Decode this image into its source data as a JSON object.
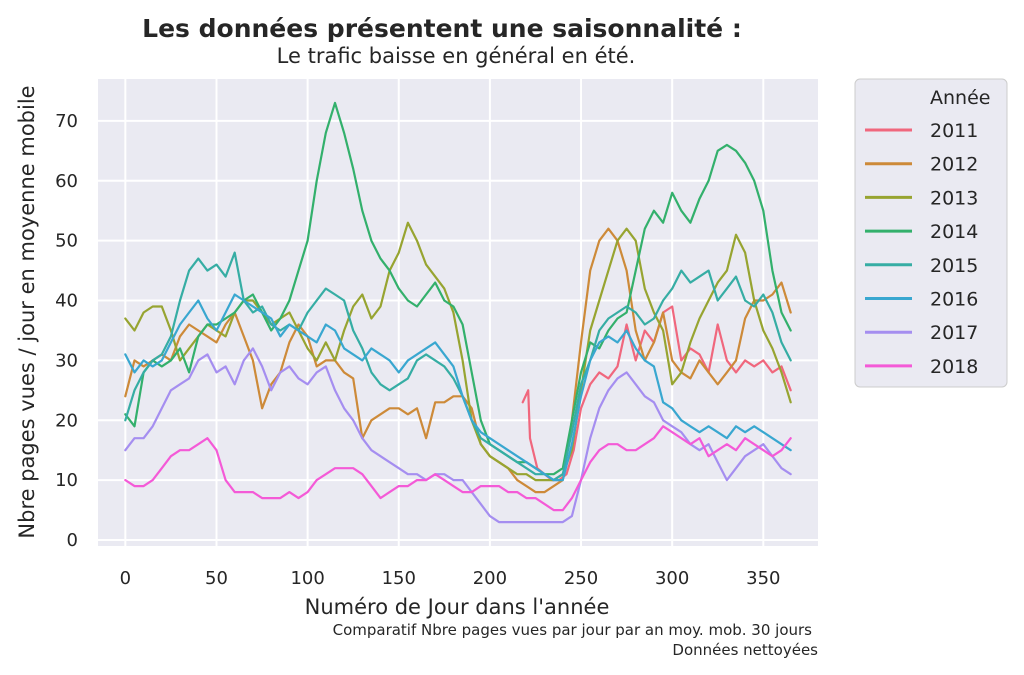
{
  "chart_data": {
    "type": "line",
    "title": "Les données présentent une saisonnalité :",
    "subtitle": "Le trafic baisse en général en été.",
    "xlabel": "Numéro de Jour dans l'année",
    "ylabel": "Nbre pages vues / jour en moyenne mobile",
    "notes": [
      "Comparatif Nbre pages vues par jour  par an moy. mob. 30 jours",
      "Données nettoyées"
    ],
    "xlim": [
      -15,
      380
    ],
    "ylim": [
      -1,
      77
    ],
    "xticks": [
      0,
      50,
      100,
      150,
      200,
      250,
      300,
      350
    ],
    "yticks": [
      0,
      10,
      20,
      30,
      40,
      50,
      60,
      70
    ],
    "grid": true,
    "legend": {
      "title": "Année",
      "placement": "outside-right"
    },
    "series": [
      {
        "name": "2011",
        "color": "#f0677d",
        "x": [
          218,
          221,
          222,
          226,
          230,
          234,
          238,
          242,
          246,
          250,
          255,
          260,
          265,
          270,
          275,
          280,
          285,
          290,
          295,
          300,
          305,
          310,
          315,
          320,
          325,
          330,
          335,
          340,
          345,
          350,
          355,
          360,
          365
        ],
        "values": [
          23,
          25,
          17,
          12,
          11,
          10,
          10,
          11,
          15,
          22,
          26,
          28,
          27,
          29,
          36,
          30,
          35,
          33,
          38,
          39,
          30,
          32,
          31,
          28,
          36,
          30,
          28,
          30,
          29,
          30,
          28,
          29,
          25
        ]
      },
      {
        "name": "2012",
        "color": "#cd8a39",
        "x": [
          0,
          5,
          10,
          15,
          20,
          25,
          30,
          35,
          40,
          45,
          50,
          55,
          60,
          65,
          70,
          75,
          80,
          85,
          90,
          95,
          100,
          105,
          110,
          115,
          120,
          125,
          130,
          135,
          140,
          145,
          150,
          155,
          160,
          165,
          170,
          175,
          180,
          185,
          190,
          195,
          200,
          205,
          210,
          215,
          220,
          225,
          230,
          235,
          240,
          245,
          250,
          255,
          260,
          265,
          270,
          275,
          280,
          285,
          290,
          295,
          300,
          305,
          310,
          315,
          320,
          325,
          330,
          335,
          340,
          345,
          350,
          355,
          360,
          365
        ],
        "values": [
          24,
          30,
          29,
          30,
          31,
          30,
          34,
          36,
          35,
          34,
          33,
          36,
          38,
          34,
          30,
          22,
          26,
          28,
          33,
          36,
          34,
          29,
          30,
          30,
          28,
          27,
          17,
          20,
          21,
          22,
          22,
          21,
          22,
          17,
          23,
          23,
          24,
          24,
          22,
          16,
          14,
          13,
          12,
          10,
          9,
          8,
          8,
          9,
          10,
          20,
          33,
          45,
          50,
          52,
          50,
          45,
          35,
          30,
          33,
          38,
          30,
          28,
          27,
          30,
          28,
          26,
          28,
          30,
          37,
          40,
          40,
          41,
          43,
          38
        ]
      },
      {
        "name": "2013",
        "color": "#97a431",
        "x": [
          0,
          5,
          10,
          15,
          20,
          25,
          30,
          35,
          40,
          45,
          50,
          55,
          60,
          65,
          70,
          75,
          80,
          85,
          90,
          95,
          100,
          105,
          110,
          115,
          120,
          125,
          130,
          135,
          140,
          145,
          150,
          155,
          160,
          165,
          170,
          175,
          180,
          185,
          190,
          195,
          200,
          205,
          210,
          215,
          220,
          225,
          230,
          235,
          240,
          245,
          250,
          255,
          260,
          265,
          270,
          275,
          280,
          285,
          290,
          295,
          300,
          305,
          310,
          315,
          320,
          325,
          330,
          335,
          340,
          345,
          350,
          355,
          360,
          365
        ],
        "values": [
          37,
          35,
          38,
          39,
          39,
          35,
          30,
          32,
          34,
          36,
          35,
          34,
          38,
          40,
          40,
          38,
          36,
          37,
          38,
          35,
          32,
          30,
          33,
          30,
          35,
          39,
          41,
          37,
          39,
          45,
          48,
          53,
          50,
          46,
          44,
          42,
          38,
          30,
          20,
          16,
          14,
          13,
          12,
          11,
          11,
          10,
          10,
          10,
          11,
          15,
          25,
          35,
          40,
          45,
          50,
          52,
          50,
          42,
          38,
          35,
          26,
          28,
          33,
          37,
          40,
          43,
          45,
          51,
          48,
          40,
          35,
          32,
          28,
          23
        ]
      },
      {
        "name": "2014",
        "color": "#33b06c",
        "x": [
          0,
          5,
          10,
          15,
          20,
          25,
          30,
          35,
          40,
          45,
          50,
          55,
          60,
          65,
          70,
          75,
          80,
          85,
          90,
          95,
          100,
          105,
          110,
          115,
          120,
          125,
          130,
          135,
          140,
          145,
          150,
          155,
          160,
          165,
          170,
          175,
          180,
          185,
          190,
          195,
          200,
          205,
          210,
          215,
          220,
          225,
          230,
          235,
          240,
          245,
          250,
          255,
          260,
          265,
          270,
          275,
          280,
          285,
          290,
          295,
          300,
          305,
          310,
          315,
          320,
          325,
          330,
          335,
          340,
          345,
          350,
          355,
          360,
          365
        ],
        "values": [
          21,
          19,
          28,
          30,
          29,
          30,
          32,
          28,
          34,
          36,
          36,
          37,
          38,
          40,
          41,
          38,
          35,
          37,
          40,
          45,
          50,
          60,
          68,
          73,
          68,
          62,
          55,
          50,
          47,
          45,
          42,
          40,
          39,
          41,
          43,
          40,
          39,
          36,
          28,
          20,
          16,
          15,
          14,
          13,
          13,
          12,
          11,
          11,
          12,
          20,
          28,
          33,
          32,
          35,
          37,
          38,
          45,
          52,
          55,
          53,
          58,
          55,
          53,
          57,
          60,
          65,
          66,
          65,
          63,
          60,
          55,
          45,
          38,
          35
        ]
      },
      {
        "name": "2015",
        "color": "#36ada4",
        "x": [
          0,
          5,
          10,
          15,
          20,
          25,
          30,
          35,
          40,
          45,
          50,
          55,
          60,
          65,
          70,
          75,
          80,
          85,
          90,
          95,
          100,
          105,
          110,
          115,
          120,
          125,
          130,
          135,
          140,
          145,
          150,
          155,
          160,
          165,
          170,
          175,
          180,
          185,
          190,
          195,
          200,
          205,
          210,
          215,
          220,
          225,
          230,
          235,
          240,
          245,
          250,
          255,
          260,
          265,
          270,
          275,
          280,
          285,
          290,
          295,
          300,
          305,
          310,
          315,
          320,
          325,
          330,
          335,
          340,
          345,
          350,
          355,
          360,
          365
        ],
        "values": [
          20,
          25,
          28,
          30,
          31,
          34,
          40,
          45,
          47,
          45,
          46,
          44,
          48,
          40,
          38,
          39,
          36,
          35,
          36,
          35,
          38,
          40,
          42,
          41,
          40,
          35,
          32,
          28,
          26,
          25,
          26,
          27,
          30,
          31,
          30,
          29,
          27,
          24,
          20,
          17,
          16,
          15,
          14,
          13,
          12,
          11,
          11,
          10,
          11,
          18,
          26,
          30,
          35,
          37,
          38,
          39,
          38,
          36,
          37,
          40,
          42,
          45,
          43,
          44,
          45,
          40,
          42,
          44,
          40,
          39,
          41,
          38,
          33,
          30
        ]
      },
      {
        "name": "2016",
        "color": "#39a7d0",
        "x": [
          0,
          5,
          10,
          15,
          20,
          25,
          30,
          35,
          40,
          45,
          50,
          55,
          60,
          65,
          70,
          75,
          80,
          85,
          90,
          95,
          100,
          105,
          110,
          115,
          120,
          125,
          130,
          135,
          140,
          145,
          150,
          155,
          160,
          165,
          170,
          175,
          180,
          185,
          190,
          195,
          200,
          205,
          210,
          215,
          220,
          225,
          230,
          235,
          240,
          245,
          250,
          255,
          260,
          265,
          270,
          275,
          280,
          285,
          290,
          295,
          300,
          305,
          310,
          315,
          320,
          325,
          330,
          335,
          340,
          345,
          350,
          355,
          360,
          365
        ],
        "values": [
          31,
          28,
          30,
          29,
          30,
          33,
          36,
          38,
          40,
          37,
          35,
          38,
          41,
          40,
          39,
          38,
          37,
          34,
          36,
          35,
          34,
          33,
          36,
          35,
          32,
          31,
          30,
          32,
          31,
          30,
          28,
          30,
          31,
          32,
          33,
          31,
          29,
          24,
          20,
          18,
          17,
          16,
          15,
          14,
          13,
          12,
          11,
          10,
          10,
          16,
          24,
          30,
          33,
          34,
          33,
          35,
          32,
          30,
          29,
          23,
          22,
          20,
          19,
          18,
          19,
          18,
          17,
          19,
          18,
          19,
          18,
          17,
          16,
          15
        ]
      },
      {
        "name": "2017",
        "color": "#a58ef0",
        "x": [
          0,
          5,
          10,
          15,
          20,
          25,
          30,
          35,
          40,
          45,
          50,
          55,
          60,
          65,
          70,
          75,
          80,
          85,
          90,
          95,
          100,
          105,
          110,
          115,
          120,
          125,
          130,
          135,
          140,
          145,
          150,
          155,
          160,
          165,
          170,
          175,
          180,
          185,
          190,
          195,
          200,
          205,
          210,
          215,
          220,
          225,
          230,
          235,
          240,
          245,
          250,
          255,
          260,
          265,
          270,
          275,
          280,
          285,
          290,
          295,
          300,
          305,
          310,
          315,
          320,
          325,
          330,
          335,
          340,
          345,
          350,
          355,
          360,
          365
        ],
        "values": [
          15,
          17,
          17,
          19,
          22,
          25,
          26,
          27,
          30,
          31,
          28,
          29,
          26,
          30,
          32,
          29,
          25,
          28,
          29,
          27,
          26,
          28,
          29,
          25,
          22,
          20,
          17,
          15,
          14,
          13,
          12,
          11,
          11,
          10,
          11,
          11,
          10,
          10,
          8,
          6,
          4,
          3,
          3,
          3,
          3,
          3,
          3,
          3,
          3,
          4,
          10,
          17,
          22,
          25,
          27,
          28,
          26,
          24,
          23,
          20,
          19,
          18,
          16,
          15,
          16,
          13,
          10,
          12,
          14,
          15,
          16,
          14,
          12,
          11
        ]
      },
      {
        "name": "2018",
        "color": "#f45ad7",
        "x": [
          0,
          5,
          10,
          15,
          20,
          25,
          30,
          35,
          40,
          45,
          50,
          55,
          60,
          65,
          70,
          75,
          80,
          85,
          90,
          95,
          100,
          105,
          110,
          115,
          120,
          125,
          130,
          135,
          140,
          145,
          150,
          155,
          160,
          165,
          170,
          175,
          180,
          185,
          190,
          195,
          200,
          205,
          210,
          215,
          220,
          225,
          230,
          235,
          240,
          245,
          250,
          255,
          260,
          265,
          270,
          275,
          280,
          285,
          290,
          295,
          300,
          305,
          310,
          315,
          320,
          325,
          330,
          335,
          340,
          345,
          350,
          355,
          360,
          365
        ],
        "values": [
          10,
          9,
          9,
          10,
          12,
          14,
          15,
          15,
          16,
          17,
          15,
          10,
          8,
          8,
          8,
          7,
          7,
          7,
          8,
          7,
          8,
          10,
          11,
          12,
          12,
          12,
          11,
          9,
          7,
          8,
          9,
          9,
          10,
          10,
          11,
          10,
          9,
          8,
          8,
          9,
          9,
          9,
          8,
          8,
          7,
          7,
          6,
          5,
          5,
          7,
          10,
          13,
          15,
          16,
          16,
          15,
          15,
          16,
          17,
          19,
          18,
          17,
          16,
          17,
          14,
          15,
          16,
          15,
          17,
          16,
          15,
          14,
          15,
          17
        ]
      }
    ]
  }
}
